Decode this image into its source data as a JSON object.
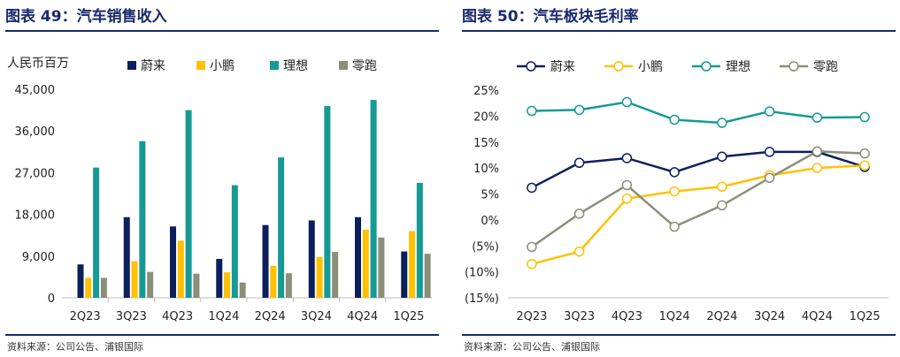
{
  "colors": {
    "nio": "#0b1f5c",
    "xpeng": "#ffc000",
    "li": "#159a96",
    "leap": "#8c8f77",
    "title": "#1a2a6c",
    "axis": "#bfbfbf"
  },
  "chart_data": [
    {
      "type": "bar",
      "title": "图表 49：汽车销售收入",
      "ylabel": "人民币百万",
      "categories": [
        "2Q23",
        "3Q23",
        "4Q23",
        "1Q24",
        "2Q24",
        "3Q24",
        "4Q24",
        "1Q25"
      ],
      "ylim": [
        0,
        45000
      ],
      "yticks": [
        0,
        9000,
        18000,
        27000,
        36000,
        45000
      ],
      "ytick_labels": [
        "0",
        "9,000",
        "18,000",
        "27,000",
        "36,000",
        "45,000"
      ],
      "grid": false,
      "legend": "top",
      "series": [
        {
          "name": "蔚来",
          "values": [
            7200,
            17400,
            15400,
            8400,
            15700,
            16700,
            17400,
            10000
          ]
        },
        {
          "name": "小鹏",
          "values": [
            4300,
            7900,
            12300,
            5500,
            6900,
            8800,
            14700,
            14400
          ]
        },
        {
          "name": "理想",
          "values": [
            28100,
            33800,
            40500,
            24300,
            30300,
            41400,
            42700,
            24800
          ]
        },
        {
          "name": "零跑",
          "values": [
            4300,
            5600,
            5200,
            3300,
            5300,
            9900,
            13000,
            9500
          ]
        }
      ],
      "source": "资料来源：公司公告、浦银国际"
    },
    {
      "type": "line",
      "title": "图表 50：汽车板块毛利率",
      "categories": [
        "2Q23",
        "3Q23",
        "4Q23",
        "1Q24",
        "2Q24",
        "3Q24",
        "4Q24",
        "1Q25"
      ],
      "ylim": [
        -15,
        25
      ],
      "yticks": [
        -15,
        -10,
        -5,
        0,
        5,
        10,
        15,
        20,
        25
      ],
      "ytick_labels": [
        "(15%)",
        "(10%)",
        "(5%)",
        "0%",
        "5%",
        "10%",
        "15%",
        "20%",
        "25%"
      ],
      "grid": false,
      "legend": "top",
      "series": [
        {
          "name": "蔚来",
          "values": [
            6.2,
            11.0,
            11.9,
            9.2,
            12.2,
            13.1,
            13.1,
            10.2
          ]
        },
        {
          "name": "小鹏",
          "values": [
            -8.5,
            -6.1,
            4.1,
            5.5,
            6.4,
            8.6,
            10.0,
            10.5
          ]
        },
        {
          "name": "理想",
          "values": [
            21.0,
            21.2,
            22.7,
            19.3,
            18.7,
            20.9,
            19.7,
            19.8
          ]
        },
        {
          "name": "零跑",
          "values": [
            -5.2,
            1.2,
            6.7,
            -1.3,
            2.8,
            8.1,
            13.2,
            12.8
          ]
        }
      ],
      "source": "资料来源：公司公告、浦银国际"
    }
  ]
}
